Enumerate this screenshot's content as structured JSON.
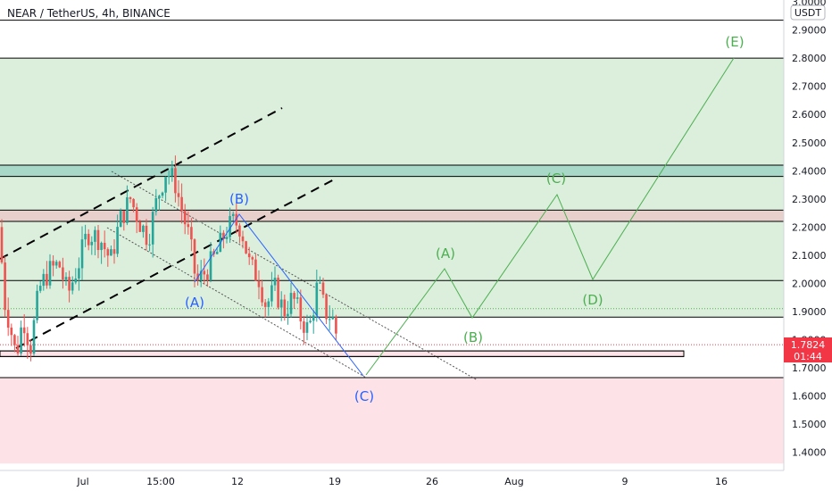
{
  "header": {
    "title": "NEAR / TetherUS, 4h, BINANCE"
  },
  "price_axis": {
    "currency_label": "USDT",
    "last_price": "1.7824",
    "countdown": "01:44"
  },
  "colors": {
    "bull": "#26a69a",
    "bear": "#ef5350",
    "green_zone": "#dbefdc",
    "red_zone": "#fde3e8",
    "projection": "#4caf50",
    "history_wave": "#2962ff",
    "channel": "#000000",
    "price_tag": "#f23645"
  },
  "chart_data": {
    "type": "candlestick",
    "title": "NEAR / TetherUS, 4h, BINANCE",
    "ylim": [
      1.36,
      3.05
    ],
    "y_ticks": [
      "3.0000",
      "2.9000",
      "2.8000",
      "2.7000",
      "2.6000",
      "2.5000",
      "2.4000",
      "2.3000",
      "2.2000",
      "2.1000",
      "2.0000",
      "1.9000",
      "1.8000",
      "1.7000",
      "1.6000",
      "1.5000",
      "1.4000"
    ],
    "x_ticks": [
      "Jul",
      "15:00",
      "12",
      "19",
      "26",
      "Aug",
      "9",
      "16"
    ],
    "last_price": 1.7824,
    "price_anchors": [
      [
        0,
        2.2
      ],
      [
        4,
        1.95
      ],
      [
        10,
        1.87
      ],
      [
        18,
        1.74
      ],
      [
        26,
        1.88
      ],
      [
        34,
        1.77
      ],
      [
        44,
        1.98
      ],
      [
        54,
        2.04
      ],
      [
        66,
        2.07
      ],
      [
        76,
        1.96
      ],
      [
        88,
        2.07
      ],
      [
        98,
        2.18
      ],
      [
        112,
        2.16
      ],
      [
        124,
        2.08
      ],
      [
        134,
        2.22
      ],
      [
        146,
        2.3
      ],
      [
        156,
        2.22
      ],
      [
        166,
        2.16
      ],
      [
        176,
        2.3
      ],
      [
        186,
        2.4
      ],
      [
        196,
        2.36
      ],
      [
        202,
        2.28
      ],
      [
        212,
        2.16
      ],
      [
        220,
        2.0
      ],
      [
        232,
        2.05
      ],
      [
        242,
        2.1
      ],
      [
        252,
        2.18
      ],
      [
        262,
        2.22
      ],
      [
        270,
        2.2
      ],
      [
        280,
        2.06
      ],
      [
        290,
        2.02
      ],
      [
        298,
        1.92
      ],
      [
        308,
        1.98
      ],
      [
        318,
        1.9
      ],
      [
        328,
        1.95
      ],
      [
        338,
        1.87
      ],
      [
        346,
        1.83
      ],
      [
        356,
        2.0
      ],
      [
        364,
        1.9
      ],
      [
        372,
        1.88
      ],
      [
        380,
        1.78
      ]
    ],
    "zones": [
      {
        "kind": "green",
        "from": 1.88,
        "to": 2.8
      },
      {
        "kind": "teal",
        "from": 2.38,
        "to": 2.42
      },
      {
        "kind": "pink",
        "from": 2.22,
        "to": 2.26
      },
      {
        "kind": "red",
        "from": 1.36,
        "to": 1.665
      },
      {
        "kind": "red_outline",
        "from": 1.74,
        "to": 1.76
      }
    ],
    "horizontal_lines": [
      2.935,
      2.8,
      2.42,
      2.38,
      2.26,
      2.22,
      2.01,
      1.88,
      1.665,
      1.76,
      1.74
    ],
    "dotted_levels": [
      1.91,
      1.782
    ],
    "wave_history": [
      {
        "label": "(A)",
        "price": 2.01
      },
      {
        "label": "(B)",
        "price": 2.24
      },
      {
        "label": "(C)",
        "price": 1.67
      }
    ],
    "wave_projection": [
      {
        "label": "(A)",
        "price": 2.05
      },
      {
        "label": "(B)",
        "price": 1.88
      },
      {
        "label": "(C)",
        "price": 2.31
      },
      {
        "label": "(D)",
        "price": 2.01
      },
      {
        "label": "(E)",
        "price": 2.8
      }
    ]
  }
}
